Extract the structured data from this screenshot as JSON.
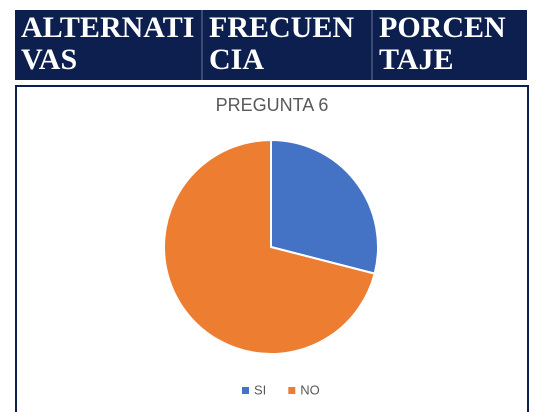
{
  "table": {
    "header": [
      "ALTERNATIVAS",
      "FRECUENCIA",
      "PORCENTAJE"
    ]
  },
  "chart_data": {
    "type": "pie",
    "title": "PREGUNTA 6",
    "categories": [
      "SI",
      "NO"
    ],
    "values": [
      29,
      71
    ],
    "colors": [
      "#4472c4",
      "#ed7d31"
    ],
    "legend": "bottom"
  }
}
